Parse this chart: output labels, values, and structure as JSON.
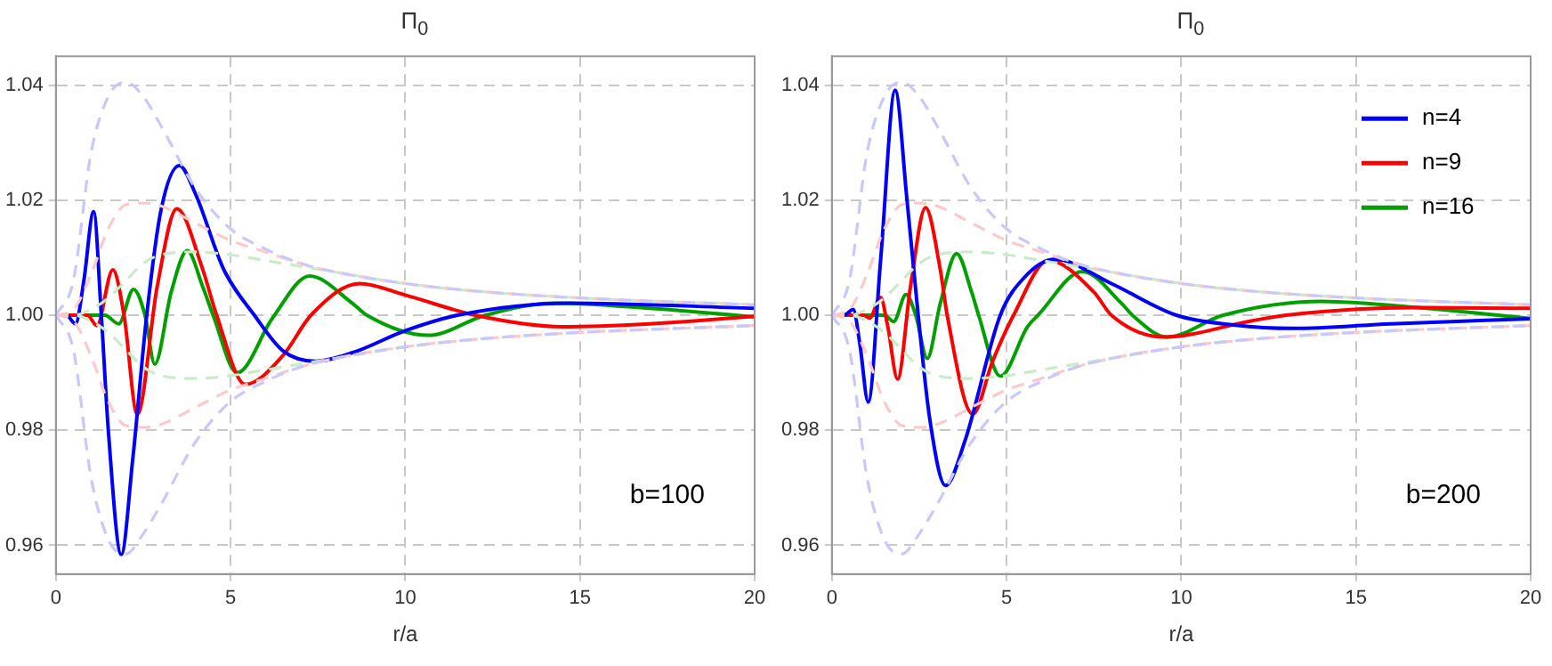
{
  "chart_data": [
    {
      "type": "line",
      "title": "Π$_{0}$",
      "xlabel": "r/a",
      "xlim": [
        0,
        20
      ],
      "xticks": [
        0,
        5,
        10,
        15,
        20
      ],
      "ylim": [
        0.955,
        1.045
      ],
      "yticks": [
        0.96,
        0.98,
        {
          "value": 1,
          "label": "1.00"
        },
        1.02,
        1.04
      ],
      "grid": true,
      "legend": false,
      "marker": "none",
      "annotations": [
        "b=100"
      ],
      "series": [
        {
          "color": "#c8c8ff",
          "line_style": "dashed",
          "x": [
            0,
            0.5,
            1,
            1.5,
            2,
            2.5,
            3,
            4,
            5,
            6,
            7,
            8,
            10,
            12,
            15,
            20
          ],
          "values": [
            1.0,
            1.006,
            1.028,
            1.038,
            1.0405,
            1.038,
            1.033,
            1.022,
            1.015,
            1.0115,
            1.009,
            1.0075,
            1.0055,
            1.0042,
            1.003,
            1.0018
          ]
        },
        {
          "color": "#c8c8ff",
          "line_style": "dashed",
          "x": [
            0,
            0.5,
            1,
            1.5,
            2,
            2.5,
            3,
            4,
            5,
            6,
            7,
            8,
            10,
            12,
            15,
            20
          ],
          "values": [
            1.0,
            0.994,
            0.972,
            0.961,
            0.9585,
            0.962,
            0.967,
            0.978,
            0.985,
            0.9885,
            0.991,
            0.9925,
            0.9945,
            0.9958,
            0.997,
            0.9982
          ]
        },
        {
          "color": "#ffc8c8",
          "line_style": "dashed",
          "x": [
            0,
            0.5,
            1,
            1.5,
            2,
            2.5,
            3,
            4,
            5,
            6,
            7,
            8,
            10,
            12,
            15,
            20
          ],
          "values": [
            1.0,
            1.001,
            1.007,
            1.015,
            1.0192,
            1.0195,
            1.019,
            1.016,
            1.013,
            1.011,
            1.009,
            1.0075,
            1.0055,
            1.0042,
            1.003,
            1.0018
          ]
        },
        {
          "color": "#ffc8c8",
          "line_style": "dashed",
          "x": [
            0,
            0.5,
            1,
            1.5,
            2,
            2.5,
            3,
            4,
            5,
            6,
            7,
            8,
            10,
            12,
            15,
            20
          ],
          "values": [
            1.0,
            0.999,
            0.993,
            0.985,
            0.9808,
            0.9805,
            0.981,
            0.984,
            0.987,
            0.989,
            0.991,
            0.9925,
            0.9945,
            0.9958,
            0.997,
            0.9982
          ]
        },
        {
          "color": "#c8ebc8",
          "line_style": "dashed",
          "x": [
            0,
            0.5,
            1,
            1.5,
            2,
            2.5,
            3,
            4,
            5,
            6,
            7,
            8,
            10,
            12,
            15,
            20
          ],
          "values": [
            1.0,
            1.0,
            1.001,
            1.003,
            1.006,
            1.009,
            1.0105,
            1.011,
            1.0105,
            1.0095,
            1.0085,
            1.0075,
            1.0055,
            1.0042,
            1.003,
            1.0018
          ]
        },
        {
          "color": "#c8ebc8",
          "line_style": "dashed",
          "x": [
            0,
            0.5,
            1,
            1.5,
            2,
            2.5,
            3,
            4,
            5,
            6,
            7,
            8,
            10,
            12,
            15,
            20
          ],
          "values": [
            1.0,
            1.0,
            0.999,
            0.997,
            0.994,
            0.991,
            0.9895,
            0.989,
            0.9895,
            0.9905,
            0.9915,
            0.9925,
            0.9945,
            0.9958,
            0.997,
            0.9982
          ]
        },
        {
          "color": "#0000ff",
          "line_style": "solid",
          "x": [
            0,
            0.3,
            0.56,
            0.8,
            1.08,
            1.3,
            1.5,
            1.87,
            2.2,
            2.6,
            3.0,
            3.53,
            4.0,
            4.8,
            5.68,
            6.5,
            7.43,
            8.5,
            10,
            11.5,
            14.7,
            20
          ],
          "values": [
            1.0,
            1.0,
            0.9985,
            1.006,
            1.018,
            1.0,
            0.98,
            0.9584,
            0.975,
            1.0,
            1.018,
            1.026,
            1.021,
            1.008,
            1.0,
            0.9938,
            0.992,
            0.9935,
            0.9973,
            1.0,
            1.0021,
            1.0012
          ]
        },
        {
          "color": "#ff0000",
          "line_style": "solid",
          "x": [
            0,
            0.9,
            1.17,
            1.63,
            1.95,
            2.33,
            2.9,
            3.46,
            4.2,
            4.6,
            5.42,
            6.5,
            7.3,
            8.69,
            10,
            12,
            14.5,
            17,
            20
          ],
          "values": [
            1.0,
            1.0,
            0.9982,
            1.0079,
            1.0,
            0.9828,
            1.005,
            1.0185,
            1.008,
            1.0,
            0.988,
            0.993,
            1.0,
            1.0055,
            1.0035,
            1.0,
            0.998,
            0.9985,
            0.9998
          ]
        },
        {
          "color": "#00a000",
          "line_style": "solid",
          "x": [
            0,
            1.4,
            1.8,
            2.22,
            2.55,
            2.83,
            3.3,
            3.76,
            4.2,
            4.5,
            5.19,
            6.2,
            7.26,
            8.5,
            8.9,
            10.66,
            12.3,
            14.3,
            17,
            20
          ],
          "values": [
            1.0,
            1.0,
            0.9985,
            1.0045,
            1.0,
            0.9915,
            1.004,
            1.0112,
            1.005,
            1.0,
            0.99,
            0.9995,
            1.0068,
            1.002,
            1.0,
            0.9965,
            1.0,
            1.0021,
            1.0012,
            0.9997
          ]
        }
      ]
    },
    {
      "type": "line",
      "title": "Π$_{0}$",
      "xlabel": "r/a",
      "xlim": [
        0,
        20
      ],
      "xticks": [
        0,
        5,
        10,
        15,
        20
      ],
      "ylim": [
        0.955,
        1.045
      ],
      "yticks": [
        0.96,
        0.98,
        {
          "value": 1,
          "label": "1.00"
        },
        1.02,
        1.04
      ],
      "grid": true,
      "legend": "top right",
      "marker": "none",
      "annotations": [
        "b=200"
      ],
      "series": [
        {
          "color": "#c8c8ff",
          "line_style": "dashed",
          "x": [
            0,
            0.5,
            1,
            1.5,
            2,
            2.5,
            3,
            4,
            5,
            6,
            7,
            8,
            10,
            12,
            15,
            20
          ],
          "values": [
            1.0,
            1.006,
            1.028,
            1.038,
            1.0405,
            1.038,
            1.033,
            1.022,
            1.015,
            1.0115,
            1.009,
            1.0075,
            1.0055,
            1.0042,
            1.003,
            1.0018
          ]
        },
        {
          "color": "#c8c8ff",
          "line_style": "dashed",
          "x": [
            0,
            0.5,
            1,
            1.5,
            2,
            2.5,
            3,
            4,
            5,
            6,
            7,
            8,
            10,
            12,
            15,
            20
          ],
          "values": [
            1.0,
            0.994,
            0.972,
            0.961,
            0.9585,
            0.962,
            0.967,
            0.978,
            0.985,
            0.9885,
            0.991,
            0.9925,
            0.9945,
            0.9958,
            0.997,
            0.9982
          ]
        },
        {
          "color": "#ffc8c8",
          "line_style": "dashed",
          "x": [
            0,
            0.5,
            1,
            1.5,
            2,
            2.5,
            3,
            4,
            5,
            6,
            7,
            8,
            10,
            12,
            15,
            20
          ],
          "values": [
            1.0,
            1.001,
            1.007,
            1.015,
            1.0192,
            1.0195,
            1.019,
            1.016,
            1.013,
            1.011,
            1.009,
            1.0075,
            1.0055,
            1.0042,
            1.003,
            1.0018
          ]
        },
        {
          "color": "#ffc8c8",
          "line_style": "dashed",
          "x": [
            0,
            0.5,
            1,
            1.5,
            2,
            2.5,
            3,
            4,
            5,
            6,
            7,
            8,
            10,
            12,
            15,
            20
          ],
          "values": [
            1.0,
            0.999,
            0.993,
            0.985,
            0.9808,
            0.9805,
            0.981,
            0.984,
            0.987,
            0.989,
            0.991,
            0.9925,
            0.9945,
            0.9958,
            0.997,
            0.9982
          ]
        },
        {
          "color": "#c8ebc8",
          "line_style": "dashed",
          "x": [
            0,
            0.5,
            1,
            1.5,
            2,
            2.5,
            3,
            4,
            5,
            6,
            7,
            8,
            10,
            12,
            15,
            20
          ],
          "values": [
            1.0,
            1.0,
            1.001,
            1.003,
            1.006,
            1.009,
            1.0105,
            1.011,
            1.0105,
            1.0095,
            1.0085,
            1.0075,
            1.0055,
            1.0042,
            1.003,
            1.0018
          ]
        },
        {
          "color": "#c8ebc8",
          "line_style": "dashed",
          "x": [
            0,
            0.5,
            1,
            1.5,
            2,
            2.5,
            3,
            4,
            5,
            6,
            7,
            8,
            10,
            12,
            15,
            20
          ],
          "values": [
            1.0,
            1.0,
            0.999,
            0.997,
            0.994,
            0.991,
            0.9895,
            0.989,
            0.9895,
            0.9905,
            0.9915,
            0.9925,
            0.9945,
            0.9958,
            0.997,
            0.9982
          ]
        },
        {
          "name": "n=4",
          "color": "#0000ff",
          "line_style": "solid",
          "x": [
            0,
            0.35,
            0.61,
            0.8,
            1.04,
            1.4,
            1.81,
            2.15,
            2.47,
            2.8,
            3.25,
            3.8,
            4.82,
            5.5,
            6.38,
            8,
            9.86,
            11.5,
            13.2,
            16,
            20
          ],
          "values": [
            1.0,
            1.0,
            1.001,
            0.995,
            0.9849,
            1.01,
            1.0391,
            1.02,
            1.0,
            0.982,
            0.9704,
            0.978,
            1.0,
            1.0065,
            1.0097,
            1.0055,
            1.0,
            0.9983,
            0.9977,
            0.9985,
            0.9994
          ]
        },
        {
          "name": "n=9",
          "color": "#ff0000",
          "line_style": "solid",
          "x": [
            0,
            0.9,
            1.08,
            1.39,
            1.6,
            1.88,
            2.25,
            2.68,
            3.1,
            3.3,
            4.03,
            4.6,
            5.2,
            6.2,
            7.5,
            8.0,
            9.5,
            12,
            13,
            16.6,
            20
          ],
          "values": [
            1.0,
            1.0,
            0.9995,
            1.0031,
            0.998,
            0.9889,
            1.005,
            1.0187,
            1.008,
            1.0,
            0.9828,
            0.992,
            1.0,
            1.0095,
            1.004,
            1.0,
            0.9962,
            0.999,
            1.0,
            1.0013,
            1.0012
          ]
        },
        {
          "name": "n=16",
          "color": "#00a000",
          "line_style": "solid",
          "x": [
            0,
            1.5,
            1.77,
            2.12,
            2.4,
            2.73,
            3.1,
            3.57,
            4.0,
            4.2,
            4.82,
            5.6,
            5.9,
            7.17,
            8.3,
            8.6,
            9.6,
            11.2,
            14,
            17,
            20
          ],
          "values": [
            1.0,
            1.0,
            0.9989,
            1.0036,
            1.0,
            0.9925,
            1.002,
            1.0107,
            1.004,
            1.0,
            0.9894,
            0.998,
            1.0,
            1.0076,
            1.002,
            1.0,
            0.9962,
            1.0,
            1.0024,
            1.0012,
            0.9994
          ]
        }
      ]
    }
  ]
}
